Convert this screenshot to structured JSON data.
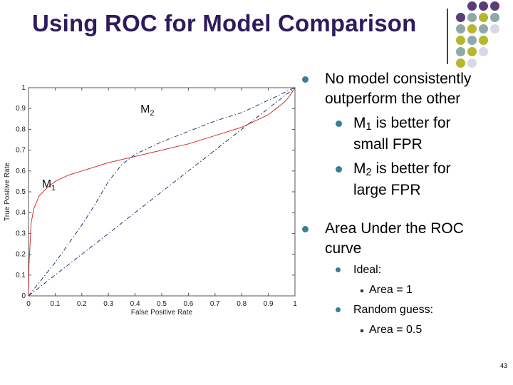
{
  "slide": {
    "title": "Using ROC for Model Comparison",
    "page_number": "43"
  },
  "bullets": {
    "b1": "No model consistently outperform the other",
    "b1_line1": "No model consistently",
    "b1_line2": "outperform the other",
    "m1_model": "M",
    "m1_sub": "1",
    "m1_rest": " is better for",
    "m1_line2": "small FPR",
    "m2_model": "M",
    "m2_sub": "2",
    "m2_rest": " is better for",
    "m2_line2": "large FPR",
    "b2_line1": "Area Under the ROC",
    "b2_line2": "curve",
    "ideal": "Ideal:",
    "ideal_area": "Area = 1",
    "random": "Random guess:",
    "random_area": "Area = 0.5"
  },
  "decoration": {
    "dot_colors": [
      "#5b3c7a",
      "#b5b82a",
      "#8fa8a8",
      "#d8d8e6"
    ]
  },
  "chart_data": {
    "type": "line",
    "xlabel": "False Positive Rate",
    "ylabel": "True Positive Rate",
    "xlim": [
      0,
      1
    ],
    "ylim": [
      0,
      1
    ],
    "x_ticks": [
      "0",
      "0.1",
      "0.2",
      "0.3",
      "0.4",
      "0.5",
      "0.6",
      "0.7",
      "0.8",
      "0.9",
      "1"
    ],
    "y_ticks": [
      "0",
      "0.1",
      "0.2",
      "0.3",
      "0.4",
      "0.5",
      "0.6",
      "0.7",
      "0.8",
      "0.9",
      "1"
    ],
    "annotations": [
      {
        "text": "M",
        "sub": "2",
        "x": 0.42,
        "y": 0.88
      },
      {
        "text": "M",
        "sub": "1",
        "x": 0.05,
        "y": 0.52
      }
    ],
    "series": [
      {
        "color": "#d03030",
        "style": "solid",
        "x": [
          0,
          0.002,
          0.01,
          0.02,
          0.04,
          0.07,
          0.1,
          0.15,
          0.2,
          0.3,
          0.4,
          0.5,
          0.6,
          0.7,
          0.8,
          0.85,
          0.9,
          0.93,
          0.96,
          0.98,
          1.0
        ],
        "y": [
          0,
          0.15,
          0.35,
          0.42,
          0.48,
          0.52,
          0.55,
          0.58,
          0.6,
          0.64,
          0.67,
          0.7,
          0.73,
          0.77,
          0.81,
          0.84,
          0.87,
          0.9,
          0.93,
          0.96,
          1.0
        ]
      },
      {
        "color": "#1e3a6e",
        "style": "dashdot",
        "x": [
          0,
          0.05,
          0.1,
          0.15,
          0.2,
          0.25,
          0.3,
          0.35,
          0.4,
          0.5,
          0.6,
          0.7,
          0.8,
          0.85,
          0.9,
          0.95,
          0.98,
          1.0
        ],
        "y": [
          0,
          0.08,
          0.16,
          0.25,
          0.34,
          0.44,
          0.55,
          0.63,
          0.68,
          0.74,
          0.79,
          0.84,
          0.88,
          0.91,
          0.94,
          0.97,
          0.99,
          1.0
        ]
      },
      {
        "color": "#1e3a6e",
        "style": "dashdot",
        "x": [
          0,
          1
        ],
        "y": [
          0,
          1
        ]
      }
    ]
  }
}
